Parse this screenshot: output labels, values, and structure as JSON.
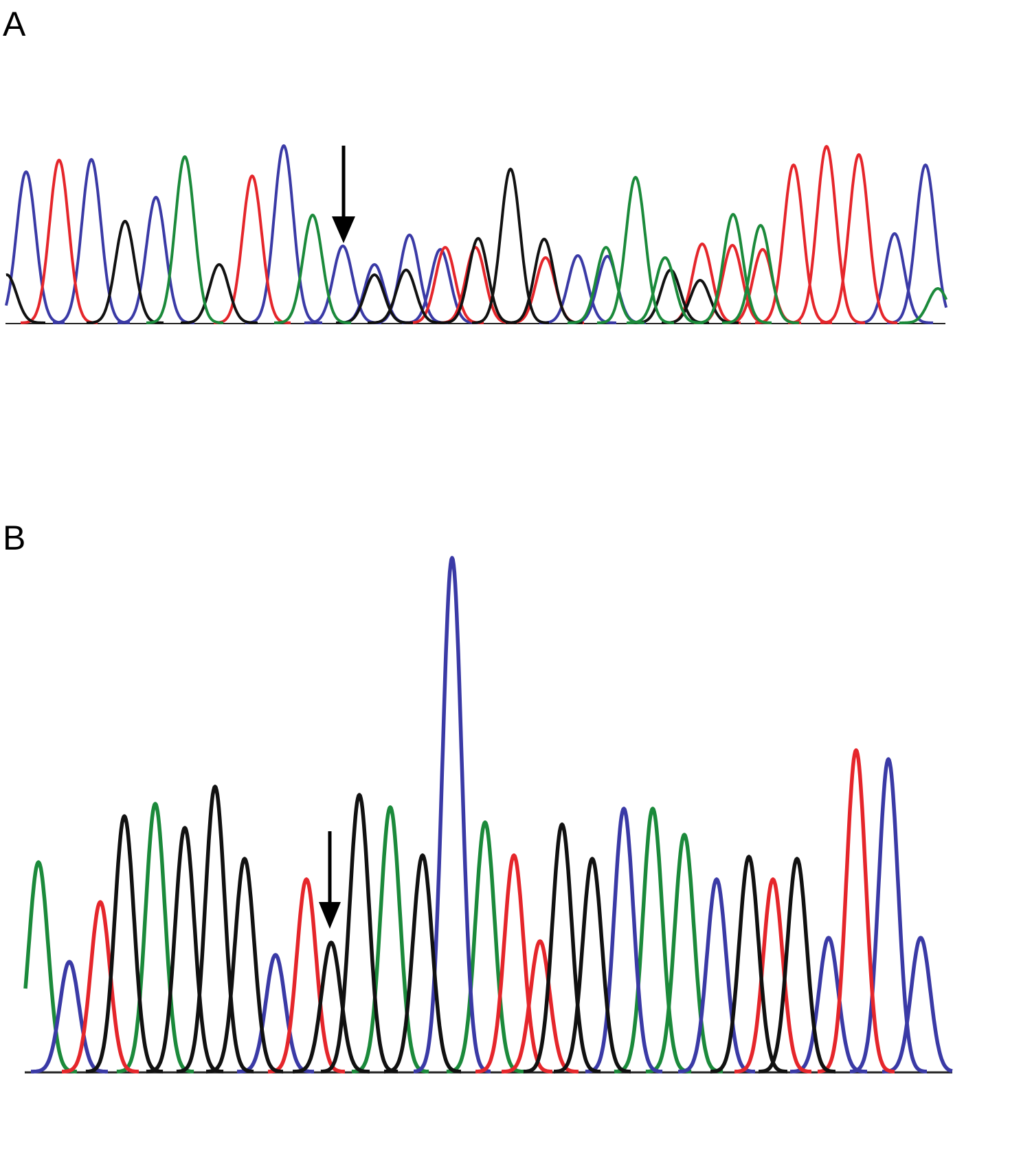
{
  "chart_data": [
    {
      "type": "chromatogram",
      "title": "A",
      "xlim": [
        0,
        1370
      ],
      "ylim": [
        0,
        280
      ],
      "series": [
        {
          "color": "#3a3aa6",
          "x": [
            30,
            125,
            219,
            405,
            491,
            537,
            588,
            633,
            833,
            876,
            1294,
            1339
          ],
          "values": [
            220,
            238,
            183,
            258,
            112,
            85,
            128,
            107,
            98,
            97,
            130,
            230
          ]
        },
        {
          "color": "#e5262b",
          "x": [
            78,
            359,
            640,
            684,
            786,
            1014,
            1058,
            1102,
            1147,
            1195,
            1242
          ],
          "values": [
            237,
            214,
            110,
            110,
            95,
            115,
            113,
            107,
            230,
            257,
            245
          ]
        },
        {
          "color": "#111111",
          "x": [
            2,
            174,
            311,
            537,
            583,
            688,
            735,
            784,
            968,
            1011
          ],
          "values": [
            70,
            148,
            85,
            70,
            77,
            123,
            224,
            122,
            77,
            62
          ]
        },
        {
          "color": "#1b8a3b",
          "x": [
            261,
            447,
            874,
            917,
            960,
            1059,
            1099,
            1357
          ],
          "values": [
            242,
            157,
            110,
            212,
            95,
            158,
            142,
            50
          ]
        }
      ]
    },
    {
      "type": "chromatogram",
      "title": "B",
      "xlim": [
        0,
        1350
      ],
      "ylim": [
        0,
        760
      ],
      "series": [
        {
          "color": "#1b8a3b",
          "x": [
            20,
            190,
            532,
            670,
            914,
            960
          ],
          "values": [
            305,
            390,
            385,
            363,
            383,
            345
          ]
        },
        {
          "color": "#3a3aa6",
          "x": [
            65,
            365,
            622,
            872,
            1007,
            1170,
            1257,
            1304
          ],
          "values": [
            160,
            170,
            748,
            383,
            280,
            195,
            455,
            195
          ]
        },
        {
          "color": "#e5262b",
          "x": [
            110,
            410,
            712,
            750,
            1089,
            1210
          ],
          "values": [
            247,
            280,
            315,
            190,
            280,
            468
          ]
        },
        {
          "color": "#111111",
          "x": [
            145,
            233,
            277,
            320,
            446,
            487,
            579,
            782,
            826,
            1054,
            1124
          ],
          "values": [
            372,
            355,
            415,
            310,
            188,
            403,
            315,
            360,
            310,
            313,
            310
          ]
        }
      ]
    }
  ]
}
